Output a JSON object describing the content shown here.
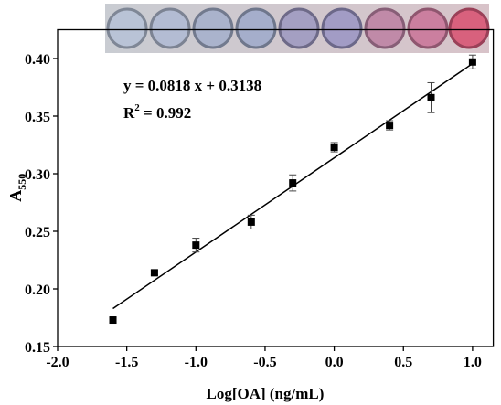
{
  "chart_data": {
    "type": "scatter",
    "x_label": "Log[OA] (ng/mL)",
    "y_label": {
      "text": "A",
      "sub": "550"
    },
    "x": [
      -1.6,
      -1.3,
      -1.0,
      -0.6,
      -0.3,
      0.0,
      0.4,
      0.7,
      1.0
    ],
    "values": [
      0.173,
      0.214,
      0.238,
      0.258,
      0.292,
      0.323,
      0.342,
      0.366,
      0.397
    ],
    "errors": [
      0.002,
      0.002,
      0.006,
      0.006,
      0.007,
      0.004,
      0.004,
      0.013,
      0.006
    ],
    "color": "#000000",
    "fit": {
      "slope": 0.0818,
      "intercept": 0.3138
    },
    "equation": "y = 0.0818 x + 0.3138",
    "r2": {
      "base": "R",
      "sup": "2",
      "rest": " = 0.992"
    },
    "xlim": [
      -2.0,
      1.15
    ],
    "ylim": [
      0.15,
      0.425
    ],
    "xticks": [
      {
        "value": -2.0,
        "label": "-2.0"
      },
      -1.5,
      {
        "value": -1.0,
        "label": "-1.0"
      },
      -0.5,
      {
        "value": 0.0,
        "label": "0.0"
      },
      0.5,
      {
        "value": 1.0,
        "label": "1.0"
      }
    ],
    "yticks": [
      0.15,
      {
        "value": 0.2,
        "label": "0.20"
      },
      0.25,
      {
        "value": 0.3,
        "label": "0.30"
      },
      0.35,
      {
        "value": 0.4,
        "label": "0.40"
      }
    ]
  }
}
